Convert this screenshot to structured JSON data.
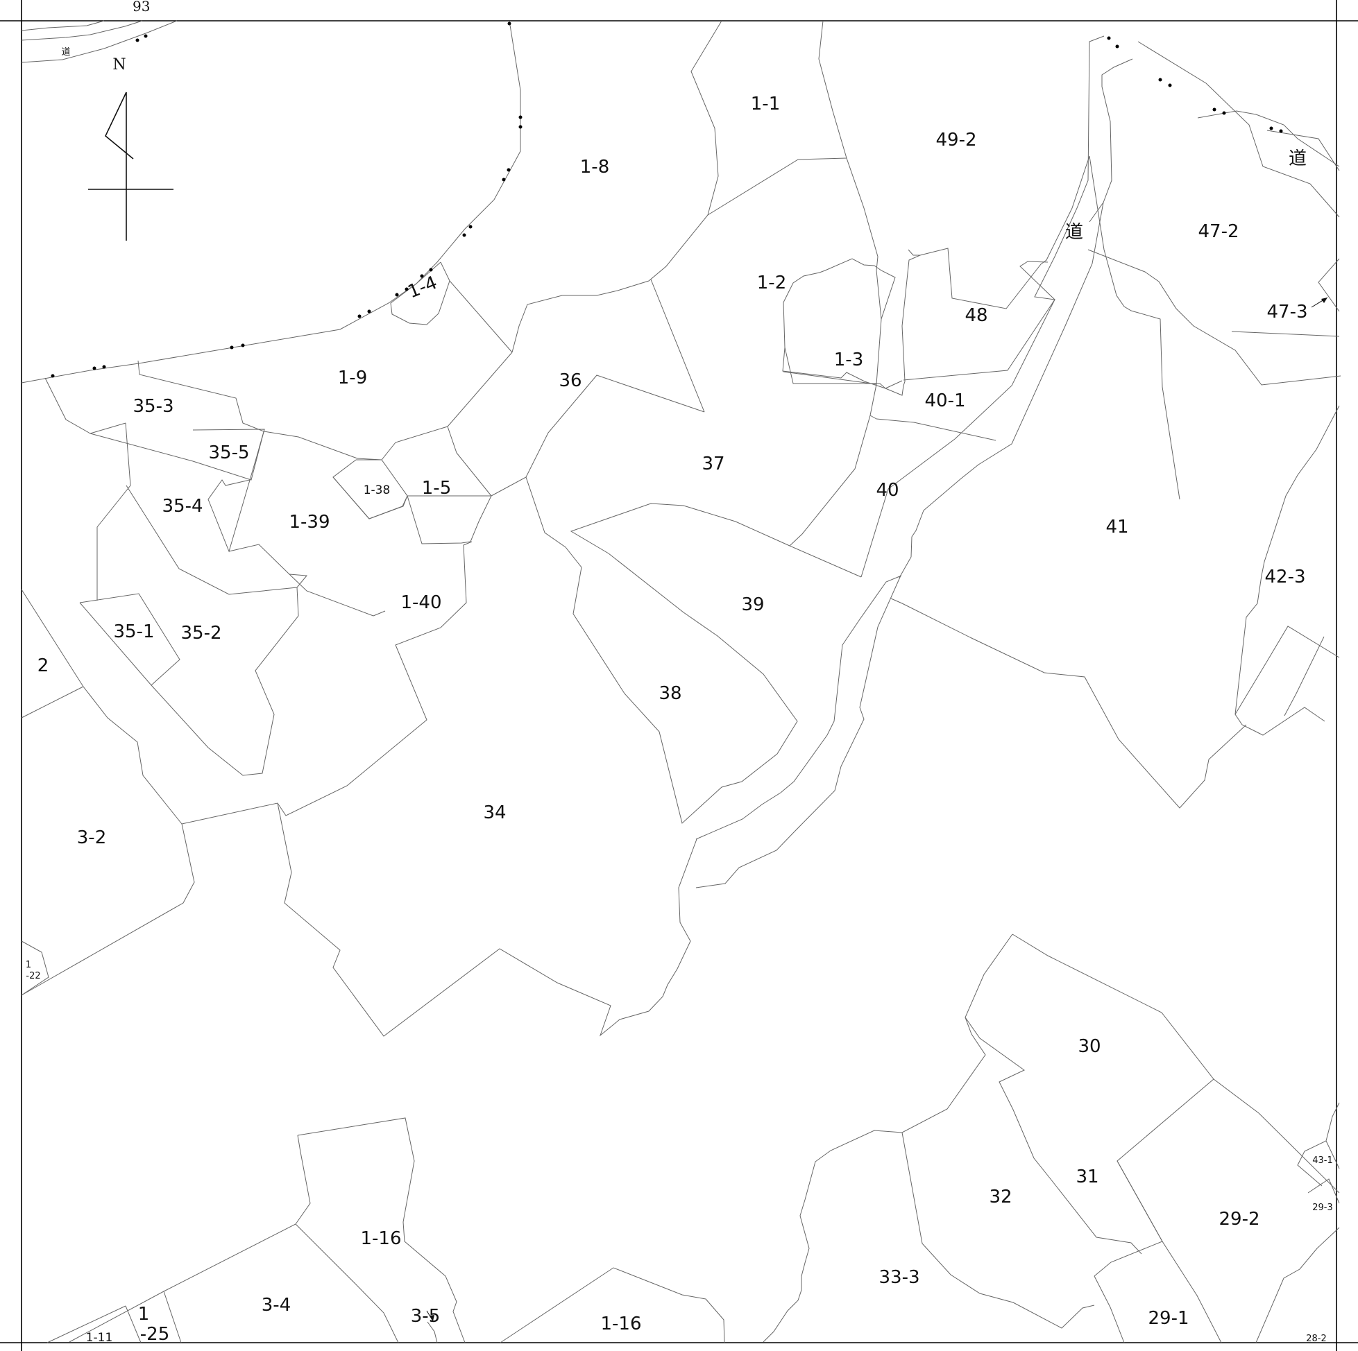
{
  "map": {
    "north_label": "N",
    "edge_number": "93",
    "parcels": [
      {
        "id": "1-1",
        "label": "1-1",
        "size": "lg"
      },
      {
        "id": "1-8",
        "label": "1-8",
        "size": "lg"
      },
      {
        "id": "49-2",
        "label": "49-2",
        "size": "lg"
      },
      {
        "id": "47-2",
        "label": "47-2",
        "size": "lg"
      },
      {
        "id": "47-3",
        "label": "47-3",
        "size": "lg"
      },
      {
        "id": "1-2",
        "label": "1-2",
        "size": "lg"
      },
      {
        "id": "48",
        "label": "48",
        "size": "lg"
      },
      {
        "id": "1-4",
        "label": "1-4",
        "size": "lg"
      },
      {
        "id": "1-3",
        "label": "1-3",
        "size": "lg"
      },
      {
        "id": "1-9",
        "label": "1-9",
        "size": "lg"
      },
      {
        "id": "36",
        "label": "36",
        "size": "lg"
      },
      {
        "id": "40-1",
        "label": "40-1",
        "size": "lg"
      },
      {
        "id": "35-3",
        "label": "35-3",
        "size": "lg"
      },
      {
        "id": "35-5",
        "label": "35-5",
        "size": "lg"
      },
      {
        "id": "37",
        "label": "37",
        "size": "lg"
      },
      {
        "id": "1-38",
        "label": "1-38",
        "size": "sm"
      },
      {
        "id": "1-5",
        "label": "1-5",
        "size": "lg"
      },
      {
        "id": "40",
        "label": "40",
        "size": "lg"
      },
      {
        "id": "35-4",
        "label": "35-4",
        "size": "lg"
      },
      {
        "id": "1-39",
        "label": "1-39",
        "size": "lg"
      },
      {
        "id": "41",
        "label": "41",
        "size": "lg"
      },
      {
        "id": "42-3",
        "label": "42-3",
        "size": "lg"
      },
      {
        "id": "1-40",
        "label": "1-40",
        "size": "lg"
      },
      {
        "id": "39",
        "label": "39",
        "size": "lg"
      },
      {
        "id": "35-1",
        "label": "35-1",
        "size": "lg"
      },
      {
        "id": "35-2",
        "label": "35-2",
        "size": "lg"
      },
      {
        "id": "2",
        "label": "2",
        "size": "lg"
      },
      {
        "id": "38",
        "label": "38",
        "size": "lg"
      },
      {
        "id": "34",
        "label": "34",
        "size": "lg"
      },
      {
        "id": "3-2",
        "label": "3-2",
        "size": "lg"
      },
      {
        "id": "1-22-a",
        "label": "1",
        "size": "xs"
      },
      {
        "id": "1-22-b",
        "label": "-22",
        "size": "xs"
      },
      {
        "id": "30",
        "label": "30",
        "size": "lg"
      },
      {
        "id": "43-1",
        "label": "43-1",
        "size": "xs"
      },
      {
        "id": "31",
        "label": "31",
        "size": "lg"
      },
      {
        "id": "32",
        "label": "32",
        "size": "lg"
      },
      {
        "id": "29-3",
        "label": "29-3",
        "size": "xs"
      },
      {
        "id": "29-2",
        "label": "29-2",
        "size": "lg"
      },
      {
        "id": "1-16-a",
        "label": "1-16",
        "size": "lg"
      },
      {
        "id": "33-3",
        "label": "33-3",
        "size": "lg"
      },
      {
        "id": "3-4",
        "label": "3-4",
        "size": "lg"
      },
      {
        "id": "1-25-a",
        "label": "1",
        "size": "lg"
      },
      {
        "id": "1-25-b",
        "label": "-25",
        "size": "lg"
      },
      {
        "id": "3-5",
        "label": "3-5",
        "size": "lg"
      },
      {
        "id": "1-16-b",
        "label": "1-16",
        "size": "lg"
      },
      {
        "id": "29-1",
        "label": "29-1",
        "size": "lg"
      },
      {
        "id": "1-11",
        "label": "1-11",
        "size": "sm"
      },
      {
        "id": "28-2",
        "label": "28-2",
        "size": "xs"
      }
    ],
    "roads": [
      {
        "id": "road-top-left",
        "label": "道"
      },
      {
        "id": "road-center",
        "label": "道"
      },
      {
        "id": "road-top-right",
        "label": "道"
      }
    ]
  }
}
